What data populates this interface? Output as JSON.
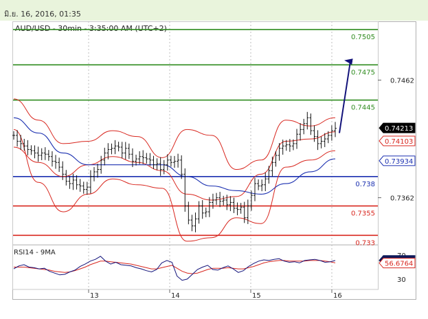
{
  "header": {
    "timestamp": "มิ.ย. 16, 2016, 01:35"
  },
  "chart_data": {
    "type": "line",
    "title": "AUD/USD - 30min - 3:35:00 AM (UTC+2)",
    "x_tick_labels": [
      "13",
      "14",
      "15",
      "16"
    ],
    "price_axis": {
      "tick_labels": [
        "0.7462",
        "0.7362"
      ],
      "ylim": [
        0.7322,
        0.7512
      ]
    },
    "levels": [
      {
        "label": "0.7505",
        "value": 0.7505,
        "color": "#2e8b1e"
      },
      {
        "label": "0.7475",
        "value": 0.7475,
        "color": "#2e8b1e"
      },
      {
        "label": "0.7445",
        "value": 0.7445,
        "color": "#2e8b1e"
      },
      {
        "label": "0.738",
        "value": 0.738,
        "color": "#1a2fb0"
      },
      {
        "label": "0.7355",
        "value": 0.7355,
        "color": "#d8261e"
      },
      {
        "label": "0.733",
        "value": 0.733,
        "color": "#d8261e"
      }
    ],
    "price_tags": [
      {
        "label": "0.74213",
        "value": 0.74213,
        "style": "black"
      },
      {
        "label": "0.74103",
        "value": 0.74103,
        "style": "red"
      },
      {
        "label": "0.73934",
        "value": 0.73934,
        "style": "blue"
      }
    ],
    "price_series": [
      0.7415,
      0.741,
      0.7408,
      0.7406,
      0.7403,
      0.7402,
      0.74,
      0.7398,
      0.74,
      0.7399,
      0.7397,
      0.7393,
      0.7392,
      0.7388,
      0.7382,
      0.7376,
      0.7374,
      0.7377,
      0.7373,
      0.7372,
      0.7369,
      0.7371,
      0.738,
      0.7384,
      0.7386,
      0.7394,
      0.74,
      0.7403,
      0.7404,
      0.7406,
      0.7405,
      0.74,
      0.7404,
      0.7399,
      0.7393,
      0.7395,
      0.7397,
      0.7396,
      0.7395,
      0.7394,
      0.739,
      0.7391,
      0.7386,
      0.739,
      0.7394,
      0.7392,
      0.7393,
      0.7394,
      0.7382,
      0.7355,
      0.7343,
      0.7338,
      0.7344,
      0.7355,
      0.7349,
      0.735,
      0.7358,
      0.736,
      0.7362,
      0.7359,
      0.736,
      0.7356,
      0.7358,
      0.7353,
      0.7352,
      0.7354,
      0.7345,
      0.7355,
      0.7364,
      0.7374,
      0.7372,
      0.7373,
      0.7378,
      0.7385,
      0.7392,
      0.7398,
      0.7404,
      0.7406,
      0.7407,
      0.7406,
      0.7408,
      0.7416,
      0.742,
      0.7425,
      0.743,
      0.7419,
      0.7414,
      0.7408,
      0.741,
      0.7412,
      0.7415,
      0.7419,
      0.7421
    ],
    "bollinger": {
      "middle": [
        0.7405,
        0.7392,
        0.738,
        0.739,
        0.7397,
        0.7392,
        0.7385,
        0.7365,
        0.736,
        0.7363,
        0.7382,
        0.741,
        0.7412,
        0.7418
      ],
      "upper": [
        0.7446,
        0.7428,
        0.7408,
        0.741,
        0.7419,
        0.7414,
        0.7396,
        0.742,
        0.7415,
        0.7386,
        0.7394,
        0.7428,
        0.7423,
        0.743
      ],
      "lower": [
        0.742,
        0.7375,
        0.735,
        0.7365,
        0.7378,
        0.7373,
        0.737,
        0.7325,
        0.7328,
        0.7345,
        0.734,
        0.7388,
        0.7394,
        0.7402
      ]
    },
    "moving_average": [
      0.743,
      0.7417,
      0.74,
      0.739,
      0.739,
      0.739,
      0.739,
      0.738,
      0.7372,
      0.7368,
      0.7365,
      0.7374,
      0.7384,
      0.7395
    ],
    "forecast_arrow": {
      "from": 0.7417,
      "to": 0.7478
    },
    "rsi": {
      "title": "RSI14 - 9MA",
      "tick_labels": [
        "70",
        "30"
      ],
      "ylim": [
        15,
        85
      ],
      "tags": [
        {
          "label": "61.1814",
          "value": 61.18,
          "style": "navy"
        },
        {
          "label": "56.6764",
          "value": 56.68,
          "style": "red"
        }
      ],
      "rsi_series": [
        47,
        52,
        54,
        50,
        49,
        47,
        48,
        43,
        40,
        37,
        38,
        42,
        45,
        51,
        55,
        60,
        63,
        68,
        60,
        55,
        58,
        54,
        53,
        52,
        49,
        47,
        44,
        42,
        46,
        57,
        61,
        58,
        35,
        28,
        30,
        38,
        46,
        50,
        53,
        46,
        45,
        49,
        52,
        47,
        41,
        44,
        51,
        56,
        60,
        62,
        61,
        63,
        64,
        60,
        58,
        59,
        57,
        61,
        62,
        63,
        61,
        58,
        59,
        61
      ],
      "ma_series": [
        50,
        50,
        50,
        49,
        48,
        47,
        46,
        45,
        43,
        42,
        41,
        42,
        44,
        47,
        50,
        54,
        57,
        60,
        60,
        59,
        58,
        57,
        56,
        55,
        53,
        51,
        49,
        47,
        47,
        49,
        51,
        53,
        48,
        43,
        40,
        39,
        40,
        43,
        46,
        48,
        48,
        48,
        49,
        48,
        47,
        47,
        49,
        51,
        54,
        57,
        59,
        60,
        61,
        61,
        60,
        60,
        60,
        60,
        61,
        61,
        61,
        60,
        59,
        57
      ]
    }
  }
}
